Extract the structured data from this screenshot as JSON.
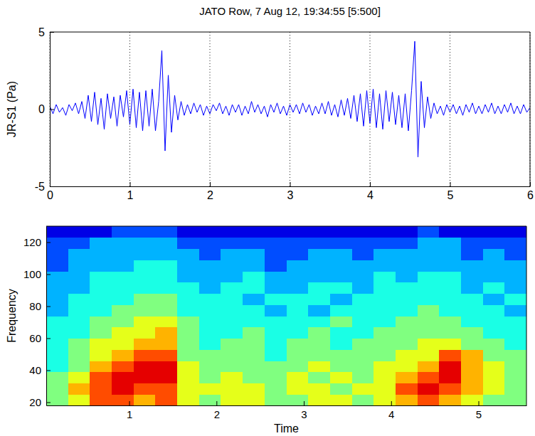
{
  "chart_data": [
    {
      "type": "line",
      "title": "JATO Row, 7 Aug 12, 19:34:55 [5:500]",
      "y_label": "JR-S1 (Pa)",
      "xlim": [
        0,
        6
      ],
      "ylim": [
        -5,
        5
      ],
      "xticks": [
        0,
        1,
        2,
        3,
        4,
        5,
        6
      ],
      "yticks": [
        -5,
        0,
        5
      ],
      "grid": "x",
      "x": [
        0,
        0.04,
        0.08,
        0.12,
        0.16,
        0.2,
        0.24,
        0.28,
        0.32,
        0.36,
        0.4,
        0.44,
        0.48,
        0.52,
        0.56,
        0.6,
        0.64,
        0.68,
        0.72,
        0.76,
        0.8,
        0.84,
        0.88,
        0.92,
        0.96,
        1,
        1.04,
        1.08,
        1.12,
        1.16,
        1.2,
        1.24,
        1.28,
        1.32,
        1.36,
        1.4,
        1.44,
        1.48,
        1.52,
        1.56,
        1.6,
        1.64,
        1.68,
        1.72,
        1.76,
        1.8,
        1.84,
        1.88,
        1.92,
        1.96,
        2,
        2.04,
        2.08,
        2.12,
        2.16,
        2.2,
        2.24,
        2.28,
        2.32,
        2.36,
        2.4,
        2.44,
        2.48,
        2.52,
        2.56,
        2.6,
        2.64,
        2.68,
        2.72,
        2.76,
        2.8,
        2.84,
        2.88,
        2.92,
        2.96,
        3,
        3.04,
        3.08,
        3.12,
        3.16,
        3.2,
        3.24,
        3.28,
        3.32,
        3.36,
        3.4,
        3.44,
        3.48,
        3.52,
        3.56,
        3.6,
        3.64,
        3.68,
        3.72,
        3.76,
        3.8,
        3.84,
        3.88,
        3.92,
        3.96,
        4,
        4.04,
        4.08,
        4.12,
        4.16,
        4.2,
        4.24,
        4.28,
        4.32,
        4.36,
        4.4,
        4.44,
        4.48,
        4.52,
        4.56,
        4.6,
        4.64,
        4.68,
        4.72,
        4.76,
        4.8,
        4.84,
        4.88,
        4.92,
        4.96,
        5,
        5.04,
        5.08,
        5.12,
        5.16,
        5.2,
        5.24,
        5.28,
        5.32,
        5.36,
        5.4,
        5.44,
        5.48,
        5.52,
        5.56,
        5.6,
        5.64,
        5.68,
        5.72,
        5.76,
        5.8,
        5.84,
        5.88,
        5.92,
        5.96,
        6
      ],
      "series": [
        {
          "color": "#0000ff",
          "values": [
            0.2,
            -0.3,
            0.3,
            -0.2,
            0.1,
            -0.4,
            0.3,
            -0.1,
            0.4,
            -0.3,
            0.5,
            -0.6,
            0.9,
            -0.8,
            1.1,
            -1.0,
            0.7,
            -1.3,
            1.0,
            -0.6,
            0.8,
            -1.1,
            0.9,
            -0.5,
            1.2,
            -1.0,
            1.3,
            -1.2,
            1.1,
            -1.4,
            1.2,
            -1.1,
            1.3,
            -1.4,
            0.5,
            3.8,
            -2.7,
            2.2,
            -1.5,
            0.9,
            -0.7,
            0.5,
            -0.4,
            0.3,
            -0.3,
            0.4,
            -0.2,
            0.3,
            -0.4,
            0.2,
            -0.3,
            0.3,
            -0.1,
            0.4,
            -0.3,
            0.2,
            -0.4,
            0.3,
            -0.2,
            0.3,
            -0.4,
            0.2,
            -0.3,
            0.5,
            -0.2,
            0.3,
            -0.3,
            0.2,
            -0.5,
            0.3,
            -0.2,
            0.4,
            -0.3,
            0.2,
            -0.4,
            0.3,
            -0.2,
            0.3,
            -0.3,
            0.4,
            -0.2,
            0.3,
            -0.4,
            0.2,
            -0.3,
            0.4,
            -0.3,
            0.5,
            -0.4,
            0.3,
            -0.5,
            0.6,
            -0.4,
            0.7,
            -0.6,
            0.9,
            -0.8,
            1.0,
            -1.1,
            1.2,
            -0.9,
            1.3,
            -1.2,
            1.0,
            -1.3,
            1.2,
            -0.8,
            1.1,
            -1.0,
            0.9,
            -1.2,
            1.0,
            -1.4,
            1.2,
            4.4,
            -3.1,
            1.8,
            -1.2,
            0.8,
            -0.6,
            0.4,
            -0.3,
            0.2,
            -0.4,
            0.3,
            -0.2,
            0.3,
            -0.3,
            0.2,
            -0.4,
            0.3,
            -0.2,
            0.4,
            -0.3,
            0.2,
            -0.3,
            0.3,
            -0.2,
            0.4,
            -0.3,
            0.2,
            -0.3,
            0.3,
            -0.2,
            0.4,
            -0.3,
            0.2,
            -0.3,
            0.3,
            -0.2,
            0.1
          ]
        }
      ]
    },
    {
      "type": "heatmap",
      "x_label": "Time",
      "y_label": "Frequency",
      "xlim": [
        0.05,
        5.55
      ],
      "ylim": [
        18,
        130
      ],
      "xticks": [
        1,
        2,
        3,
        4,
        5
      ],
      "yticks": [
        20,
        40,
        60,
        80,
        100,
        120
      ],
      "zlim": [
        0,
        10
      ],
      "x_edges": [
        0.05,
        0.3,
        0.55,
        0.8,
        1.05,
        1.3,
        1.55,
        1.8,
        2.05,
        2.3,
        2.55,
        2.8,
        3.05,
        3.3,
        3.55,
        3.8,
        4.05,
        4.3,
        4.55,
        4.8,
        5.05,
        5.3,
        5.55
      ],
      "y_edges": [
        18,
        25,
        32,
        39,
        46,
        53,
        60,
        67,
        74,
        81,
        88,
        95,
        102,
        109,
        116,
        123,
        130
      ],
      "cells": [
        [
          5,
          6,
          8,
          8,
          7,
          8,
          6,
          5,
          6,
          6,
          5,
          5,
          6,
          6,
          5,
          6,
          7,
          8,
          7,
          6,
          5,
          5
        ],
        [
          5,
          7,
          8,
          9,
          8,
          8,
          6,
          6,
          6,
          6,
          5,
          6,
          6,
          5,
          6,
          6,
          8,
          9,
          8,
          7,
          6,
          5
        ],
        [
          5,
          6,
          8,
          9,
          9,
          9,
          6,
          5,
          6,
          5,
          5,
          6,
          5,
          6,
          5,
          6,
          7,
          8,
          9,
          7,
          6,
          5
        ],
        [
          4,
          5,
          7,
          8,
          9,
          9,
          6,
          5,
          5,
          5,
          5,
          5,
          6,
          5,
          5,
          6,
          6,
          7,
          9,
          7,
          6,
          5
        ],
        [
          4,
          5,
          6,
          7,
          8,
          8,
          5,
          5,
          5,
          5,
          4,
          5,
          5,
          5,
          5,
          5,
          6,
          6,
          8,
          7,
          5,
          5
        ],
        [
          4,
          5,
          6,
          6,
          7,
          7,
          5,
          4,
          5,
          5,
          4,
          5,
          5,
          4,
          5,
          5,
          5,
          6,
          6,
          5,
          5,
          4
        ],
        [
          4,
          4,
          5,
          6,
          6,
          7,
          5,
          4,
          4,
          5,
          4,
          4,
          5,
          4,
          4,
          5,
          5,
          5,
          5,
          5,
          4,
          4
        ],
        [
          4,
          4,
          5,
          5,
          6,
          6,
          5,
          4,
          4,
          4,
          4,
          4,
          4,
          5,
          4,
          4,
          5,
          5,
          5,
          4,
          4,
          4
        ],
        [
          3,
          4,
          4,
          5,
          5,
          5,
          4,
          4,
          4,
          4,
          3,
          4,
          3,
          4,
          4,
          4,
          4,
          5,
          4,
          4,
          4,
          3
        ],
        [
          3,
          4,
          4,
          4,
          5,
          5,
          4,
          4,
          4,
          3,
          4,
          4,
          4,
          3,
          4,
          4,
          4,
          4,
          4,
          4,
          3,
          4
        ],
        [
          3,
          3,
          4,
          4,
          4,
          4,
          4,
          3,
          4,
          4,
          3,
          3,
          4,
          4,
          3,
          4,
          4,
          4,
          4,
          3,
          4,
          3
        ],
        [
          3,
          3,
          4,
          4,
          4,
          4,
          3,
          3,
          3,
          4,
          3,
          3,
          3,
          3,
          3,
          4,
          3,
          4,
          4,
          3,
          3,
          3
        ],
        [
          2,
          3,
          3,
          3,
          4,
          4,
          3,
          3,
          3,
          3,
          2,
          3,
          3,
          3,
          3,
          3,
          3,
          3,
          3,
          3,
          3,
          3
        ],
        [
          2,
          3,
          3,
          3,
          3,
          3,
          3,
          2,
          3,
          3,
          2,
          2,
          3,
          3,
          2,
          3,
          3,
          3,
          3,
          2,
          3,
          2
        ],
        [
          2,
          2,
          3,
          3,
          3,
          3,
          2,
          2,
          2,
          2,
          2,
          2,
          2,
          2,
          2,
          2,
          2,
          3,
          3,
          2,
          2,
          2
        ],
        [
          1,
          1,
          1,
          2,
          2,
          2,
          1,
          1,
          1,
          1,
          1,
          1,
          1,
          1,
          1,
          1,
          1,
          2,
          1,
          1,
          1,
          1
        ]
      ]
    }
  ]
}
